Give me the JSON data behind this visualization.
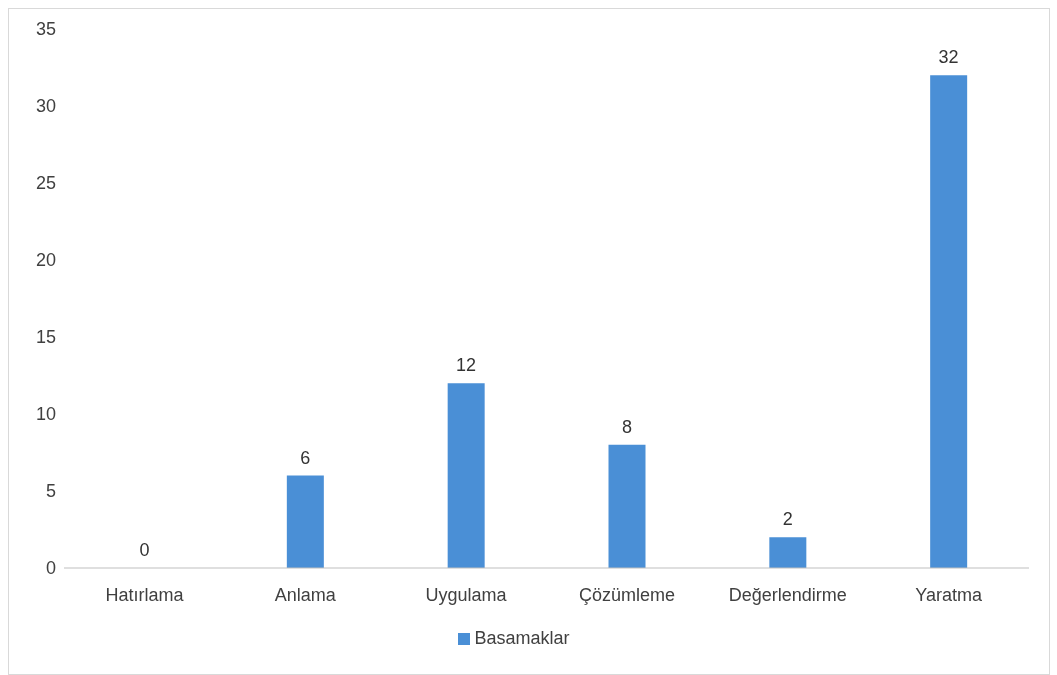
{
  "chart_data": {
    "type": "bar",
    "categories": [
      "Hatırlama",
      "Anlama",
      "Uygulama",
      "Çözümleme",
      "Değerlendirme",
      "Yaratma"
    ],
    "series": [
      {
        "name": "Basamaklar",
        "color": "#4a8fd6",
        "values": [
          0,
          6,
          12,
          8,
          2,
          32
        ]
      }
    ],
    "ylim": [
      0,
      35
    ],
    "yticks": [
      0,
      5,
      10,
      15,
      20,
      25,
      30,
      35
    ],
    "grid": false,
    "legend": "bottom",
    "data_labels": true
  }
}
